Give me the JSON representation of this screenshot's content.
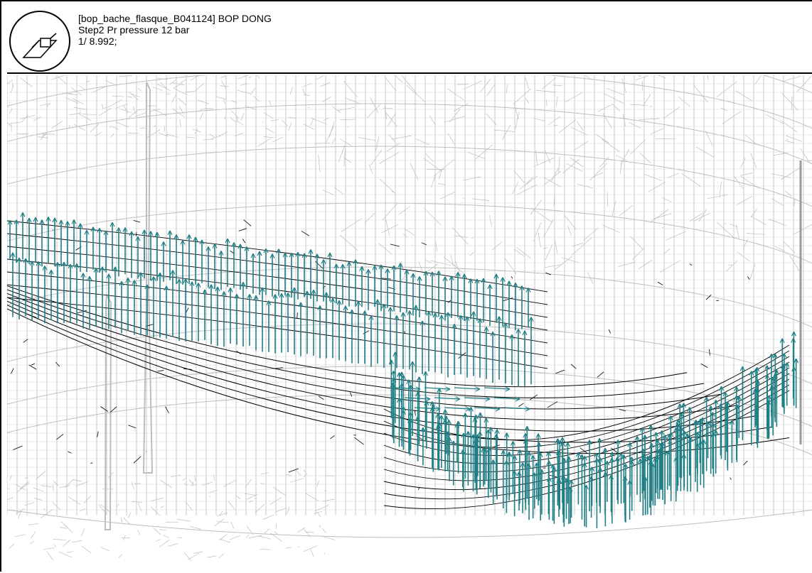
{
  "header": {
    "line1": "[bop_bache_flasque_B041124] BOP DONG",
    "line2": "Step2 Pr pressure 12 bar",
    "line3": "1/ 8.992;"
  },
  "view": {
    "icon": "view-orientation-icon",
    "mesh_color": "#bdbdbd",
    "selected_mesh_color": "#000000",
    "arrow_color": "#1f7f84"
  }
}
